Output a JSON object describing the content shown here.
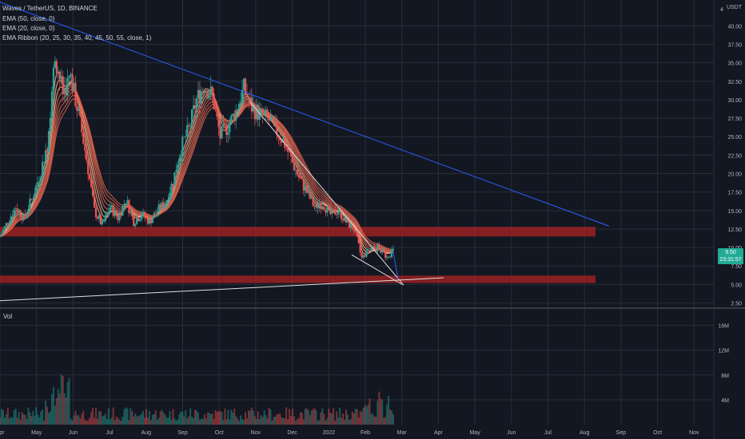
{
  "legend": {
    "title": "Waves / TetherUS, 1D, BINANCE",
    "ema50": "EMA (50, close, 0)",
    "ema20": "EMA (20, close, 0)",
    "ribbon": "EMA Ribbon (20, 25, 30, 35, 40, 45, 50, 55, close, 1)"
  },
  "volume_label": "Vol",
  "currency": "USDT",
  "price_tag": {
    "price": "9.50",
    "countdown": "23:31:57"
  },
  "colors": {
    "background": "#131722",
    "grid": "#2a2e39",
    "up": "#26a69a",
    "down": "#ef5350",
    "trendline": "#2962ff",
    "zone": "#b22222",
    "ribbon_outer": "#f4a582",
    "ribbon_inner": "#d6604d",
    "white_line": "#e0e0e0"
  },
  "chart_data": {
    "type": "candlestick",
    "x_ticks": [
      "Apr",
      "May",
      "Jun",
      "Jul",
      "Aug",
      "Sep",
      "Oct",
      "Nov",
      "Dec",
      "2022",
      "Feb",
      "Mar",
      "Apr",
      "May",
      "Jun",
      "Jul",
      "Aug",
      "Sep",
      "Oct",
      "Nov"
    ],
    "y_ticks": [
      "40.00",
      "37.50",
      "35.00",
      "32.50",
      "30.00",
      "27.50",
      "25.00",
      "22.50",
      "20.00",
      "17.50",
      "15.00",
      "12.50",
      "10.00",
      "7.50",
      "5.00",
      "2.50"
    ],
    "y_top_label": "4",
    "ylim": [
      1.8,
      43.5
    ],
    "volume_ticks": [
      "16M",
      "12M",
      "8M",
      "4M"
    ],
    "volume_ylim": [
      0,
      18
    ],
    "support_zones": [
      {
        "from": 11.5,
        "to": 12.8
      },
      {
        "from": 5.2,
        "to": 6.2
      }
    ],
    "price_series": [
      {
        "month": "Apr",
        "value": 11.5
      },
      {
        "month": "Apr",
        "value": 13.5
      },
      {
        "month": "Apr",
        "value": 15.5
      },
      {
        "month": "Apr",
        "value": 14.0
      },
      {
        "month": "Apr",
        "value": 16.5
      },
      {
        "month": "Apr",
        "value": 19.5
      },
      {
        "month": "May",
        "value": 24.0
      },
      {
        "month": "May",
        "value": 36.0
      },
      {
        "month": "May",
        "value": 31.0
      },
      {
        "month": "May",
        "value": 33.0
      },
      {
        "month": "May",
        "value": 28.0
      },
      {
        "month": "May",
        "value": 22.0
      },
      {
        "month": "Jun",
        "value": 15.0
      },
      {
        "month": "Jun",
        "value": 13.0
      },
      {
        "month": "Jun",
        "value": 15.5
      },
      {
        "month": "Jun",
        "value": 14.0
      },
      {
        "month": "Jul",
        "value": 16.5
      },
      {
        "month": "Jul",
        "value": 13.5
      },
      {
        "month": "Jul",
        "value": 14.5
      },
      {
        "month": "Jul",
        "value": 13.5
      },
      {
        "month": "Jul",
        "value": 15.0
      },
      {
        "month": "Aug",
        "value": 16.0
      },
      {
        "month": "Aug",
        "value": 19.0
      },
      {
        "month": "Aug",
        "value": 23.5
      },
      {
        "month": "Aug",
        "value": 26.0
      },
      {
        "month": "Sep",
        "value": 30.0
      },
      {
        "month": "Sep",
        "value": 32.0
      },
      {
        "month": "Sep",
        "value": 30.5
      },
      {
        "month": "Sep",
        "value": 25.0
      },
      {
        "month": "Sep",
        "value": 26.5
      },
      {
        "month": "Oct",
        "value": 28.5
      },
      {
        "month": "Oct",
        "value": 31.5
      },
      {
        "month": "Oct",
        "value": 29.0
      },
      {
        "month": "Oct",
        "value": 28.0
      },
      {
        "month": "Nov",
        "value": 27.5
      },
      {
        "month": "Nov",
        "value": 26.0
      },
      {
        "month": "Nov",
        "value": 24.5
      },
      {
        "month": "Nov",
        "value": 22.0
      },
      {
        "month": "Dec",
        "value": 19.5
      },
      {
        "month": "Dec",
        "value": 17.5
      },
      {
        "month": "Dec",
        "value": 15.5
      },
      {
        "month": "Dec",
        "value": 16.0
      },
      {
        "month": "Dec",
        "value": 14.5
      },
      {
        "month": "2022",
        "value": 15.0
      },
      {
        "month": "2022",
        "value": 13.5
      },
      {
        "month": "2022",
        "value": 12.5
      },
      {
        "month": "2022",
        "value": 8.5
      },
      {
        "month": "Feb",
        "value": 9.5
      },
      {
        "month": "Feb",
        "value": 10.0
      },
      {
        "month": "Feb",
        "value": 9.0
      },
      {
        "month": "Feb",
        "value": 9.5
      }
    ],
    "trendlines": [
      {
        "name": "descending-resistance",
        "color": "blue"
      },
      {
        "name": "ascending-support",
        "color": "white"
      },
      {
        "name": "falling-wedge-upper",
        "color": "white"
      },
      {
        "name": "falling-wedge-lower",
        "color": "white"
      },
      {
        "name": "projection",
        "color": "blue"
      }
    ]
  }
}
